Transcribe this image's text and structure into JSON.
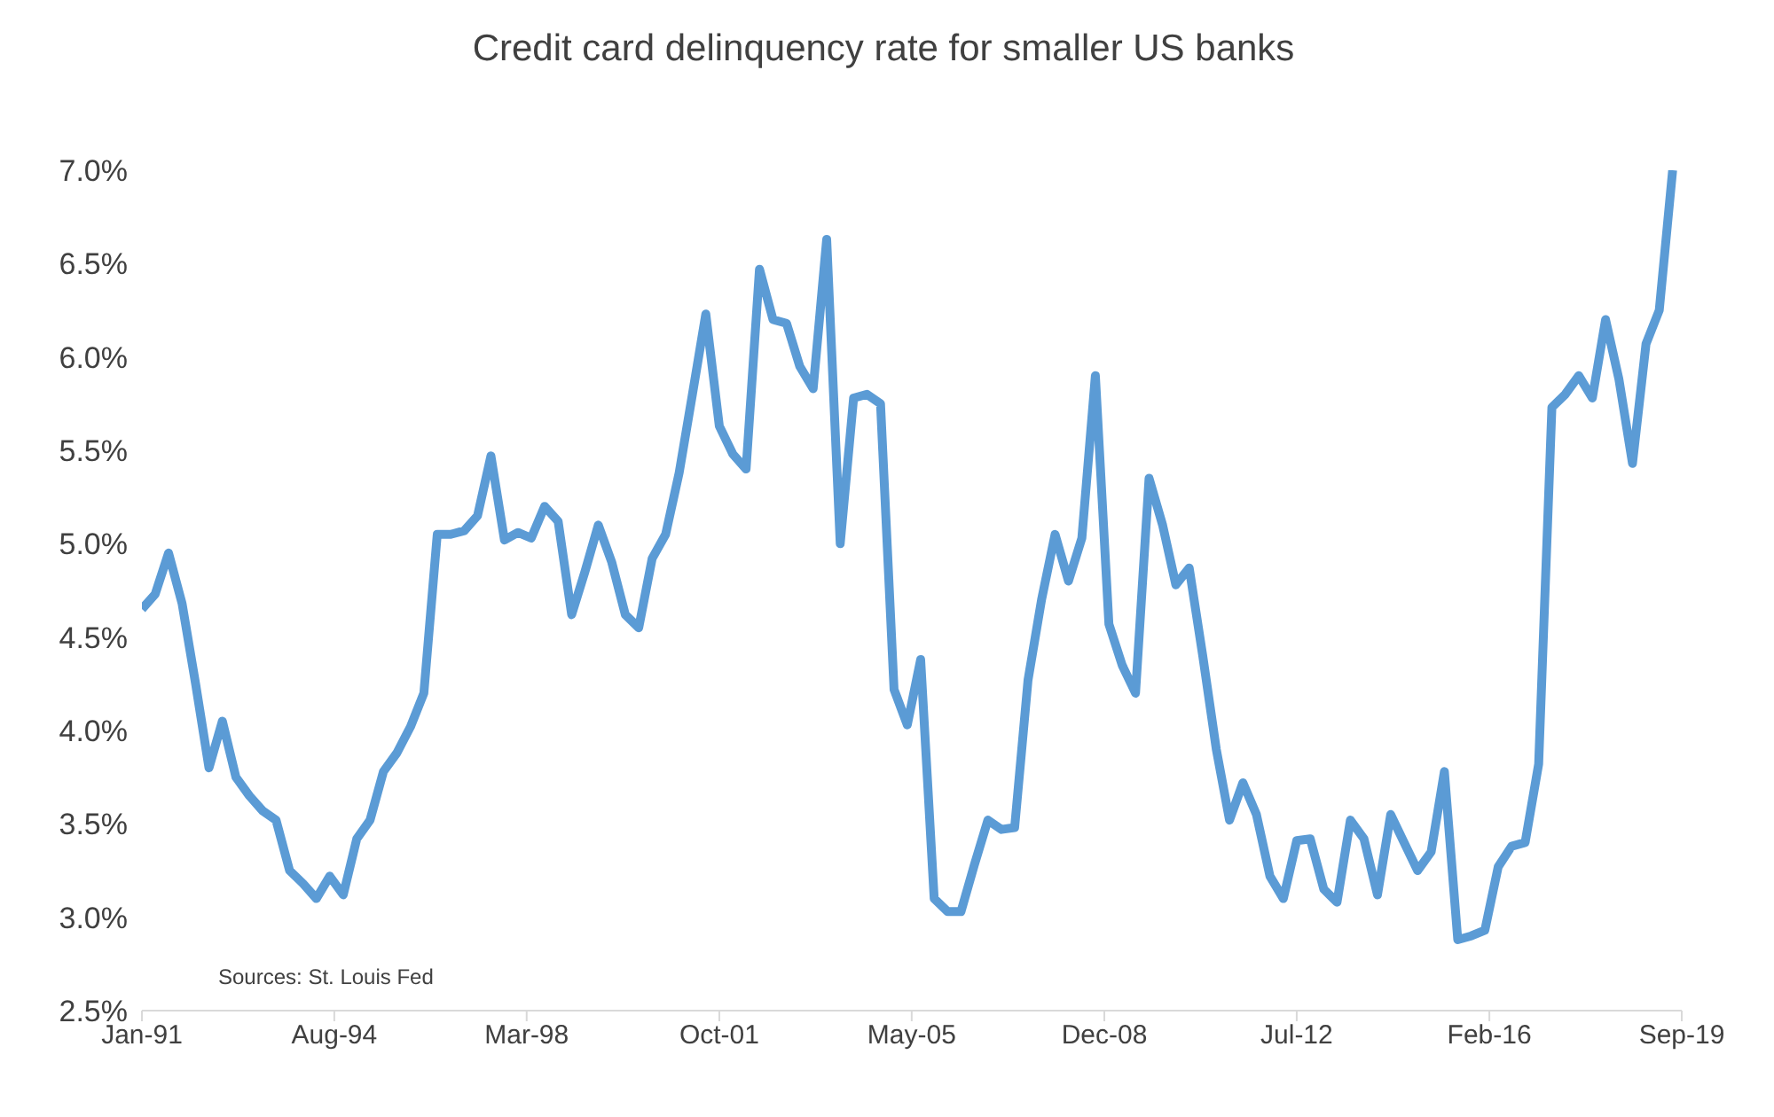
{
  "chart_data": {
    "type": "line",
    "title": "Credit card delinquency rate for smaller US banks",
    "x": [
      "1991-01",
      "1991-04",
      "1991-07",
      "1991-10",
      "1992-01",
      "1992-04",
      "1992-07",
      "1992-10",
      "1993-01",
      "1993-04",
      "1993-07",
      "1993-10",
      "1994-01",
      "1994-04",
      "1994-07",
      "1994-10",
      "1995-01",
      "1995-04",
      "1995-07",
      "1995-10",
      "1996-01",
      "1996-04",
      "1996-07",
      "1996-10",
      "1997-01",
      "1997-04",
      "1997-07",
      "1997-10",
      "1998-01",
      "1998-04",
      "1998-07",
      "1998-10",
      "1999-01",
      "1999-04",
      "1999-07",
      "1999-10",
      "2000-01",
      "2000-04",
      "2000-07",
      "2000-10",
      "2001-01",
      "2001-04",
      "2001-07",
      "2001-10",
      "2002-01",
      "2002-04",
      "2002-07",
      "2002-10",
      "2003-01",
      "2003-04",
      "2003-07",
      "2003-10",
      "2004-01",
      "2004-04",
      "2004-07",
      "2004-10",
      "2005-01",
      "2005-04",
      "2005-07",
      "2005-10",
      "2006-01",
      "2006-04",
      "2006-07",
      "2006-10",
      "2007-01",
      "2007-04",
      "2007-07",
      "2007-10",
      "2008-01",
      "2008-04",
      "2008-07",
      "2008-10",
      "2009-01",
      "2009-04",
      "2009-07",
      "2009-10",
      "2010-01",
      "2010-04",
      "2010-07",
      "2010-10",
      "2011-01",
      "2011-04",
      "2011-07",
      "2011-10",
      "2012-01",
      "2012-04",
      "2012-07",
      "2012-10",
      "2013-01",
      "2013-04",
      "2013-07",
      "2013-10",
      "2014-01",
      "2014-04",
      "2014-07",
      "2014-10",
      "2015-01",
      "2015-04",
      "2015-07",
      "2015-10",
      "2016-01",
      "2016-04",
      "2016-07",
      "2016-10",
      "2017-01",
      "2017-04",
      "2017-07",
      "2017-10",
      "2018-01",
      "2018-04",
      "2018-07",
      "2018-10",
      "2019-01",
      "2019-04",
      "2019-07"
    ],
    "series": [
      {
        "color": "#5b9bd5",
        "values": [
          4.65,
          4.73,
          4.95,
          4.68,
          4.25,
          3.8,
          4.05,
          3.75,
          3.65,
          3.57,
          3.52,
          3.25,
          3.18,
          3.1,
          3.22,
          3.12,
          3.42,
          3.52,
          3.78,
          3.88,
          4.02,
          4.2,
          5.05,
          5.05,
          5.07,
          5.15,
          5.47,
          5.02,
          5.06,
          5.03,
          5.2,
          5.12,
          4.62,
          4.85,
          5.1,
          4.9,
          4.62,
          4.55,
          4.92,
          5.05,
          5.38,
          5.8,
          6.23,
          5.63,
          5.48,
          5.4,
          6.47,
          6.2,
          6.18,
          5.95,
          5.83,
          6.63,
          5.0,
          5.78,
          5.8,
          5.75,
          4.22,
          4.03,
          4.38,
          3.1,
          3.03,
          3.03,
          3.28,
          3.52,
          3.47,
          3.48,
          4.27,
          4.7,
          5.05,
          4.8,
          5.03,
          5.9,
          4.57,
          4.35,
          4.2,
          5.35,
          5.1,
          4.78,
          4.87,
          4.4,
          3.9,
          3.52,
          3.72,
          3.55,
          3.22,
          3.1,
          3.41,
          3.42,
          3.15,
          3.08,
          3.52,
          3.42,
          3.12,
          3.55,
          3.4,
          3.25,
          3.35,
          3.78,
          2.88,
          2.9,
          2.93,
          3.27,
          3.38,
          3.4,
          3.82,
          5.73,
          5.8,
          5.9,
          5.78,
          6.2,
          5.88,
          5.43,
          6.07,
          6.25,
          7.0
        ]
      }
    ],
    "xlim": [
      "1991-01",
      "2019-09"
    ],
    "xticks": [
      {
        "value": "1991-01",
        "label": "Jan-91"
      },
      {
        "value": "1994-08",
        "label": "Aug-94"
      },
      {
        "value": "1998-03",
        "label": "Mar-98"
      },
      {
        "value": "2001-10",
        "label": "Oct-01"
      },
      {
        "value": "2005-05",
        "label": "May-05"
      },
      {
        "value": "2008-12",
        "label": "Dec-08"
      },
      {
        "value": "2012-07",
        "label": "Jul-12"
      },
      {
        "value": "2016-02",
        "label": "Feb-16"
      },
      {
        "value": "2019-09",
        "label": "Sep-19"
      }
    ],
    "ylim": [
      2.5,
      7.0
    ],
    "yticks": [
      {
        "value": 2.5,
        "label": "2.5%"
      },
      {
        "value": 3.0,
        "label": "3.0%"
      },
      {
        "value": 3.5,
        "label": "3.5%"
      },
      {
        "value": 4.0,
        "label": "4.0%"
      },
      {
        "value": 4.5,
        "label": "4.5%"
      },
      {
        "value": 5.0,
        "label": "5.0%"
      },
      {
        "value": 5.5,
        "label": "5.5%"
      },
      {
        "value": 6.0,
        "label": "6.0%"
      },
      {
        "value": 6.5,
        "label": "6.5%"
      },
      {
        "value": 7.0,
        "label": "7.0%"
      }
    ],
    "grid": false,
    "legend": false,
    "marker": "none",
    "line_style": "solid",
    "annotations": [
      "Sources: St. Louis Fed"
    ]
  }
}
